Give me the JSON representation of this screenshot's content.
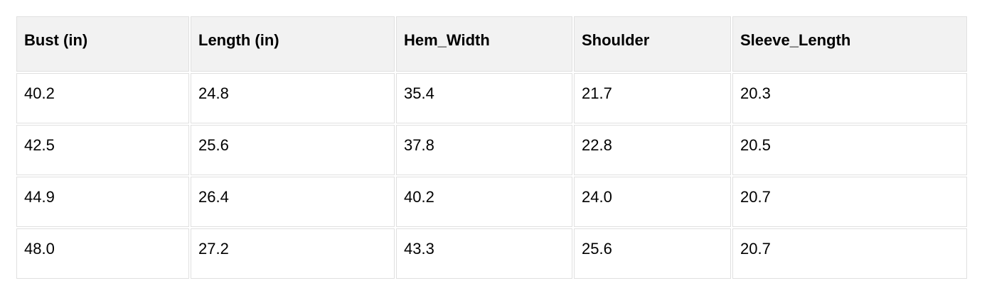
{
  "colors": {
    "page_background": "#ffffff",
    "header_background": "#f2f2f2",
    "cell_border": "#e0e0e0",
    "text": "#000000"
  },
  "chart_data": {
    "type": "table",
    "columns": [
      "Bust (in)",
      "Length (in)",
      "Hem_Width",
      "Shoulder",
      "Sleeve_Length"
    ],
    "rows": [
      [
        "40.2",
        "24.8",
        "35.4",
        "21.7",
        "20.3"
      ],
      [
        "42.5",
        "25.6",
        "37.8",
        "22.8",
        "20.5"
      ],
      [
        "44.9",
        "26.4",
        "40.2",
        "24.0",
        "20.7"
      ],
      [
        "48.0",
        "27.2",
        "43.3",
        "25.6",
        "20.7"
      ]
    ]
  }
}
